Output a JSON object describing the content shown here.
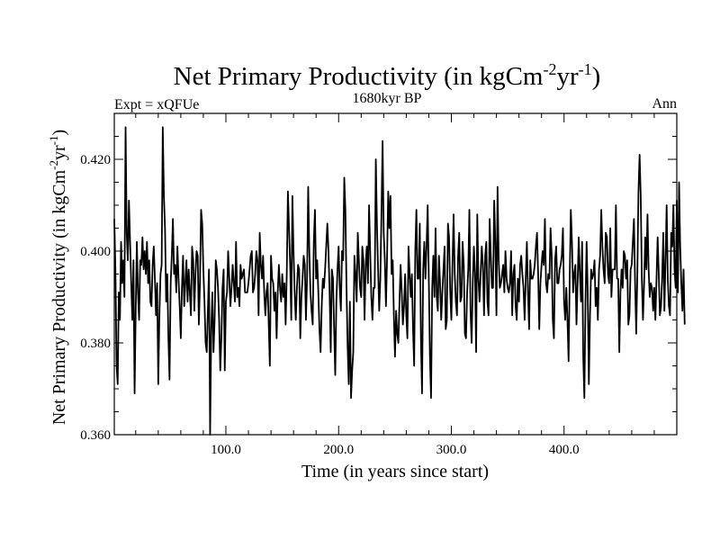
{
  "chart_data": {
    "type": "line",
    "title_main": "Net Primary Productivity (in kgCm",
    "title_sup1": "-2",
    "title_mid": "yr",
    "title_sup2": "-1",
    "title_end": ")",
    "subtitle_left": "Expt = xQFUe",
    "subtitle_center": "1680kyr BP",
    "subtitle_right": "Ann",
    "xlabel": "Time (in years since start)",
    "ylabel_main": "Net Primary Productivity (in kgCm",
    "ylabel_sup1": "-2",
    "ylabel_mid": "yr",
    "ylabel_sup2": "-1",
    "ylabel_end": ")",
    "xlim": [
      1,
      500
    ],
    "ylim": [
      0.36,
      0.43
    ],
    "xticks": [
      100,
      200,
      300,
      400
    ],
    "xtick_labels": [
      "100.0",
      "200.0",
      "300.0",
      "400.0"
    ],
    "yticks": [
      0.36,
      0.38,
      0.4,
      0.42
    ],
    "ytick_labels": [
      "0.360",
      "0.380",
      "0.400",
      "0.420"
    ],
    "grid": false,
    "series": [
      {
        "name": "Net Primary Productivity",
        "color": "#000000",
        "x_start": 1,
        "x_step": 1,
        "values": [
          0.407,
          0.396,
          0.375,
          0.371,
          0.391,
          0.385,
          0.402,
          0.393,
          0.398,
          0.39,
          0.427,
          0.404,
          0.398,
          0.411,
          0.402,
          0.393,
          0.385,
          0.398,
          0.369,
          0.387,
          0.402,
          0.391,
          0.385,
          0.398,
          0.397,
          0.403,
          0.396,
          0.4,
          0.395,
          0.402,
          0.393,
          0.398,
          0.389,
          0.388,
          0.397,
          0.401,
          0.394,
          0.386,
          0.393,
          0.371,
          0.386,
          0.395,
          0.397,
          0.427,
          0.412,
          0.405,
          0.389,
          0.395,
          0.381,
          0.372,
          0.393,
          0.399,
          0.407,
          0.395,
          0.397,
          0.391,
          0.401,
          0.394,
          0.388,
          0.381,
          0.392,
          0.399,
          0.388,
          0.393,
          0.398,
          0.389,
          0.396,
          0.391,
          0.386,
          0.401,
          0.398,
          0.387,
          0.395,
          0.4,
          0.399,
          0.384,
          0.393,
          0.409,
          0.406,
          0.396,
          0.389,
          0.38,
          0.378,
          0.387,
          0.396,
          0.36,
          0.383,
          0.391,
          0.378,
          0.385,
          0.398,
          0.396,
          0.392,
          0.385,
          0.374,
          0.381,
          0.392,
          0.396,
          0.374,
          0.389,
          0.391,
          0.4,
          0.394,
          0.388,
          0.392,
          0.397,
          0.393,
          0.389,
          0.402,
          0.39,
          0.392,
          0.388,
          0.397,
          0.394,
          0.395,
          0.396,
          0.391,
          0.391,
          0.391,
          0.393,
          0.396,
          0.399,
          0.4,
          0.391,
          0.392,
          0.395,
          0.4,
          0.398,
          0.386,
          0.404,
          0.397,
          0.394,
          0.399,
          0.391,
          0.386,
          0.391,
          0.393,
          0.384,
          0.375,
          0.399,
          0.394,
          0.393,
          0.387,
          0.391,
          0.381,
          0.391,
          0.397,
          0.392,
          0.389,
          0.395,
          0.39,
          0.393,
          0.384,
          0.395,
          0.413,
          0.405,
          0.397,
          0.385,
          0.412,
          0.4,
          0.391,
          0.385,
          0.392,
          0.397,
          0.396,
          0.381,
          0.39,
          0.394,
          0.399,
          0.397,
          0.385,
          0.394,
          0.414,
          0.4,
          0.391,
          0.387,
          0.384,
          0.402,
          0.409,
          0.394,
          0.398,
          0.391,
          0.383,
          0.378,
          0.388,
          0.394,
          0.392,
          0.396,
          0.401,
          0.406,
          0.4,
          0.391,
          0.378,
          0.396,
          0.394,
          0.383,
          0.373,
          0.389,
          0.396,
          0.401,
          0.392,
          0.387,
          0.4,
          0.398,
          0.416,
          0.409,
          0.392,
          0.379,
          0.371,
          0.389,
          0.368,
          0.374,
          0.378,
          0.399,
          0.395,
          0.389,
          0.404,
          0.398,
          0.392,
          0.39,
          0.401,
          0.398,
          0.385,
          0.397,
          0.401,
          0.393,
          0.41,
          0.4,
          0.39,
          0.385,
          0.392,
          0.392,
          0.42,
          0.406,
          0.396,
          0.387,
          0.394,
          0.408,
          0.424,
          0.404,
          0.398,
          0.388,
          0.399,
          0.413,
          0.405,
          0.412,
          0.395,
          0.398,
          0.386,
          0.377,
          0.387,
          0.382,
          0.38,
          0.389,
          0.397,
          0.391,
          0.384,
          0.388,
          0.395,
          0.386,
          0.381,
          0.401,
          0.395,
          0.39,
          0.395,
          0.383,
          0.375,
          0.4,
          0.409,
          0.394,
          0.394,
          0.406,
          0.381,
          0.369,
          0.396,
          0.402,
          0.394,
          0.401,
          0.41,
          0.394,
          0.377,
          0.368,
          0.392,
          0.399,
          0.39,
          0.405,
          0.39,
          0.387,
          0.399,
          0.393,
          0.385,
          0.391,
          0.396,
          0.401,
          0.383,
          0.385,
          0.406,
          0.403,
          0.391,
          0.385,
          0.397,
          0.408,
          0.395,
          0.389,
          0.386,
          0.399,
          0.404,
          0.389,
          0.39,
          0.402,
          0.397,
          0.382,
          0.381,
          0.391,
          0.396,
          0.409,
          0.387,
          0.38,
          0.393,
          0.401,
          0.395,
          0.378,
          0.408,
          0.394,
          0.389,
          0.395,
          0.401,
          0.397,
          0.386,
          0.399,
          0.402,
          0.389,
          0.386,
          0.407,
          0.399,
          0.392,
          0.392,
          0.411,
          0.402,
          0.386,
          0.414,
          0.398,
          0.392,
          0.393,
          0.395,
          0.397,
          0.391,
          0.4,
          0.394,
          0.392,
          0.391,
          0.393,
          0.4,
          0.386,
          0.395,
          0.397,
          0.388,
          0.385,
          0.394,
          0.389,
          0.397,
          0.399,
          0.395,
          0.392,
          0.385,
          0.394,
          0.402,
          0.391,
          0.383,
          0.398,
          0.394,
          0.394,
          0.395,
          0.397,
          0.401,
          0.404,
          0.395,
          0.383,
          0.393,
          0.397,
          0.4,
          0.397,
          0.407,
          0.393,
          0.391,
          0.395,
          0.394,
          0.405,
          0.399,
          0.385,
          0.381,
          0.398,
          0.401,
          0.393,
          0.393,
          0.396,
          0.397,
          0.399,
          0.405,
          0.389,
          0.385,
          0.392,
          0.385,
          0.376,
          0.394,
          0.409,
          0.402,
          0.391,
          0.395,
          0.397,
          0.384,
          0.393,
          0.403,
          0.395,
          0.389,
          0.402,
          0.377,
          0.368,
          0.389,
          0.402,
          0.391,
          0.371,
          0.386,
          0.396,
          0.394,
          0.395,
          0.398,
          0.388,
          0.392,
          0.385,
          0.396,
          0.399,
          0.409,
          0.401,
          0.396,
          0.393,
          0.404,
          0.403,
          0.395,
          0.393,
          0.405,
          0.39,
          0.396,
          0.396,
          0.396,
          0.41,
          0.394,
          0.394,
          0.378,
          0.391,
          0.396,
          0.392,
          0.4,
          0.399,
          0.394,
          0.398,
          0.384,
          0.386,
          0.396,
          0.397,
          0.402,
          0.407,
          0.393,
          0.382,
          0.395,
          0.413,
          0.421,
          0.412,
          0.394,
          0.385,
          0.393,
          0.403,
          0.396,
          0.408,
          0.396,
          0.39,
          0.393,
          0.392,
          0.387,
          0.392,
          0.385,
          0.394,
          0.403,
          0.395,
          0.386,
          0.388,
          0.394,
          0.404,
          0.387,
          0.398,
          0.41,
          0.394,
          0.388,
          0.386,
          0.404,
          0.401,
          0.41,
          0.396,
          0.392,
          0.411,
          0.391,
          0.415,
          0.401,
          0.393,
          0.387,
          0.396,
          0.384
        ]
      }
    ]
  }
}
